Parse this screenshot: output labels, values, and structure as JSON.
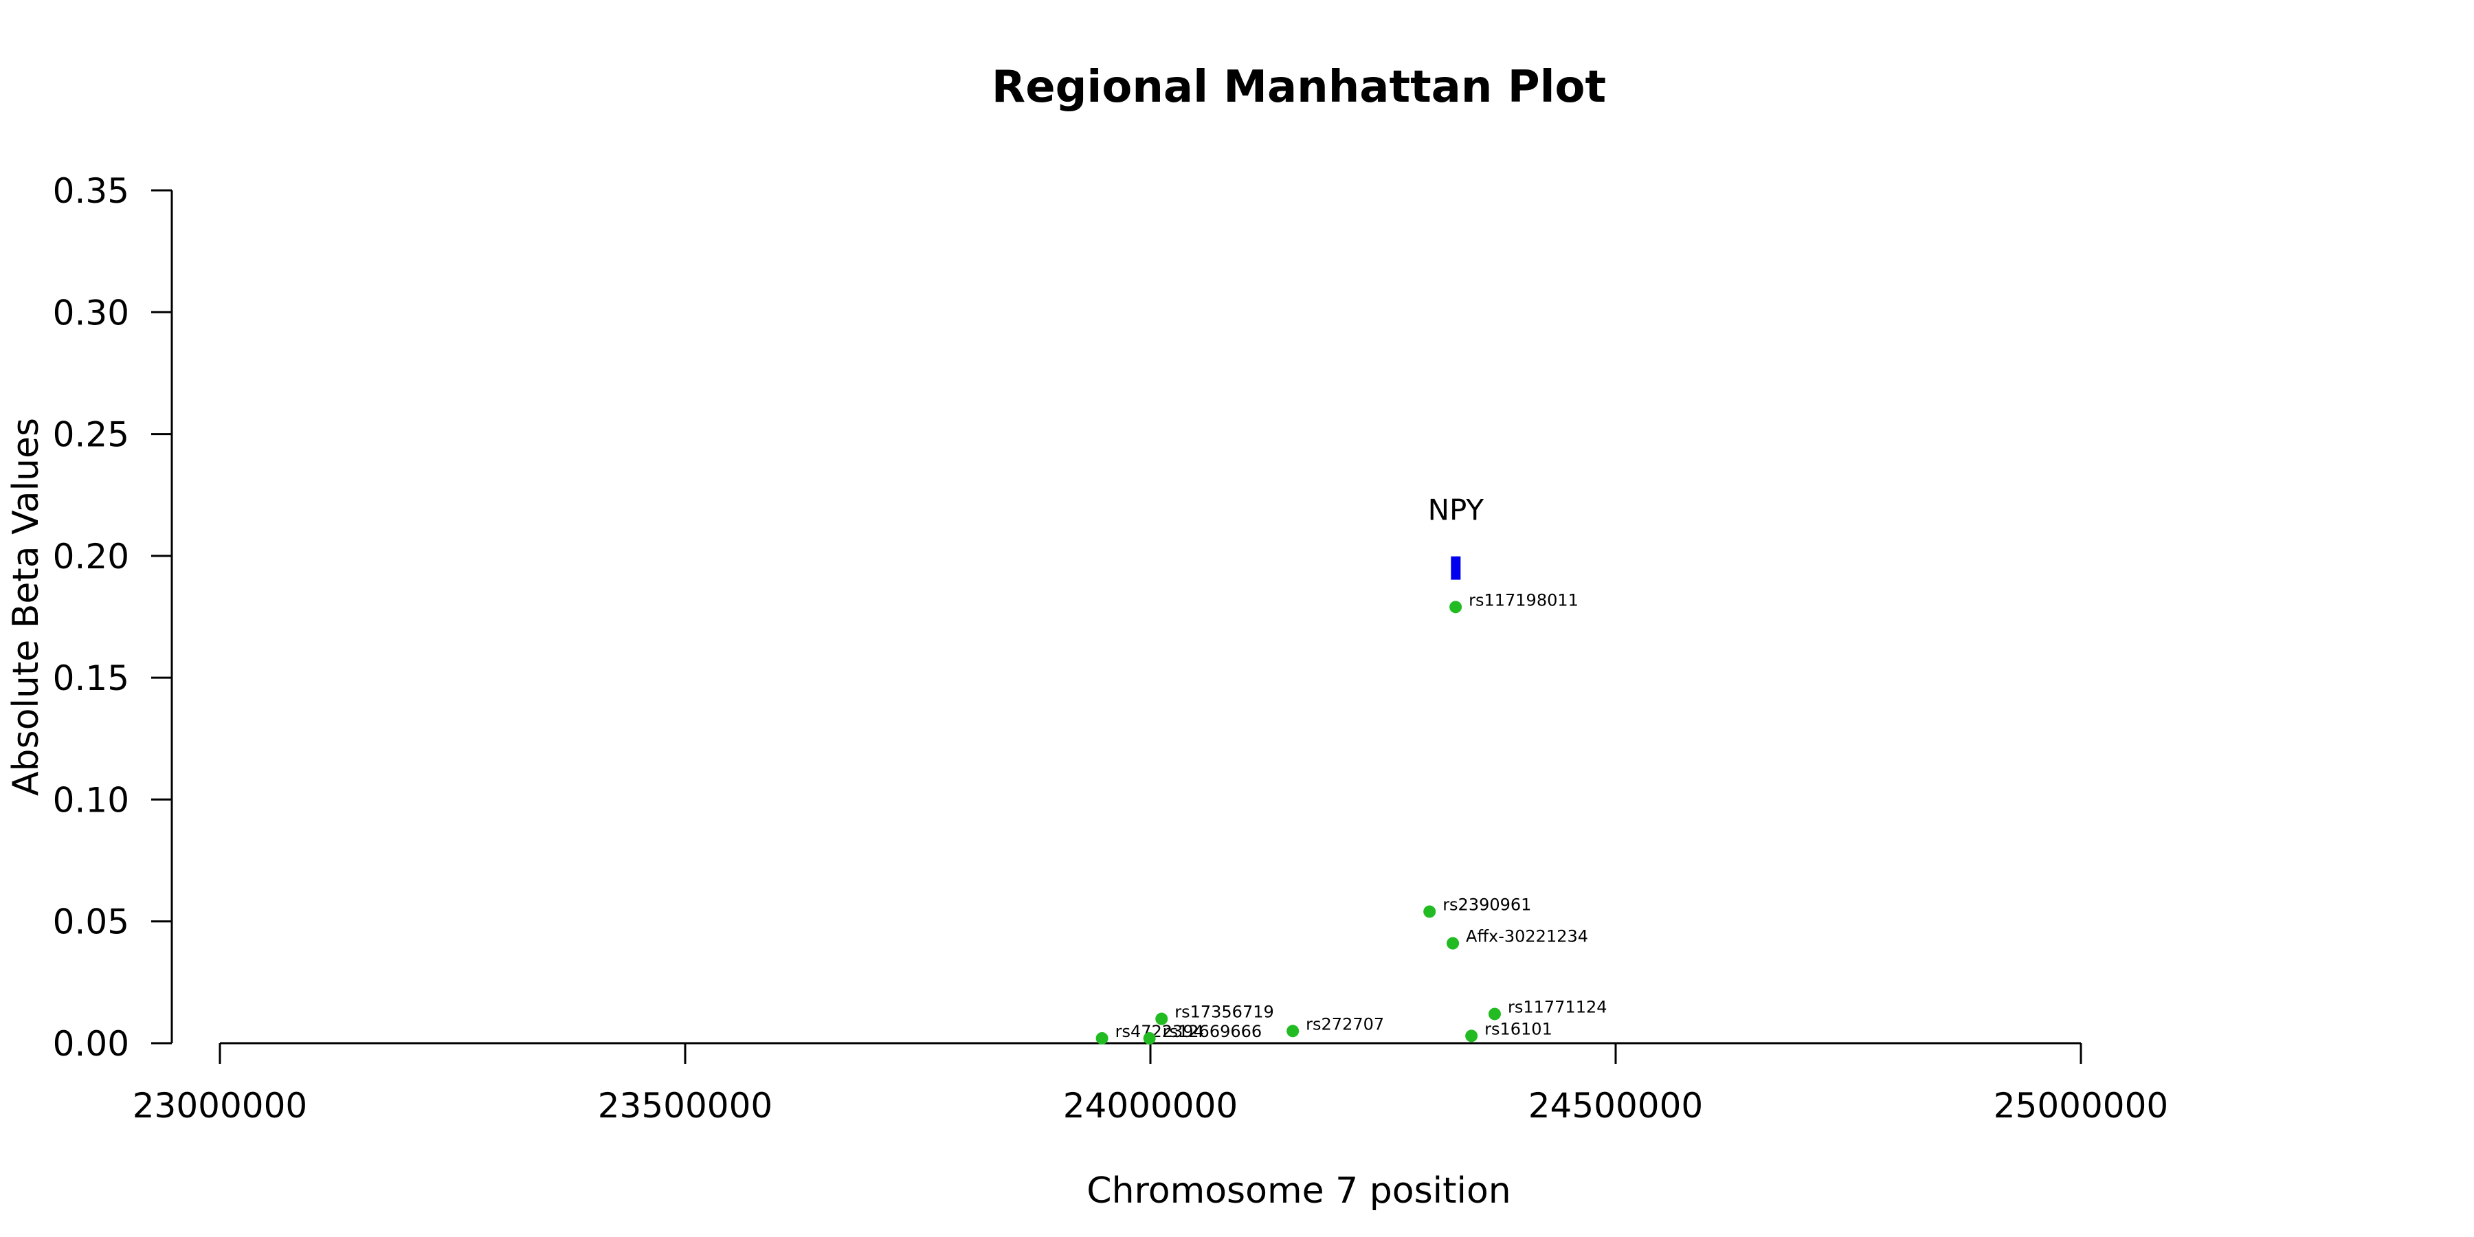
{
  "chart_data": {
    "type": "scatter",
    "title": "Regional Manhattan Plot",
    "xlabel": "Chromosome 7 position",
    "ylabel": "Absolute Beta Values",
    "xlim": [
      23000000,
      25000000
    ],
    "ylim": [
      0,
      0.35
    ],
    "x_ticks": [
      "23000000",
      "23500000",
      "24000000",
      "24500000",
      "25000000"
    ],
    "y_ticks": [
      "0.00",
      "0.05",
      "0.10",
      "0.15",
      "0.20",
      "0.25",
      "0.30",
      "0.35"
    ],
    "grid": false,
    "colors": {
      "snp": "#22bb22",
      "gene": "#0000ee"
    },
    "gene": {
      "label": "NPY",
      "start": 24323000,
      "end": 24333000,
      "y": 0.195
    },
    "points": [
      {
        "label": "rs117198011",
        "x": 24328000,
        "y": 0.179
      },
      {
        "label": "rs2390961",
        "x": 24300000,
        "y": 0.054
      },
      {
        "label": "Affx-30221234",
        "x": 24325000,
        "y": 0.041
      },
      {
        "label": "rs11771124",
        "x": 24370000,
        "y": 0.012
      },
      {
        "label": "rs17356719",
        "x": 24012000,
        "y": 0.01
      },
      {
        "label": "rs272707",
        "x": 24153000,
        "y": 0.005
      },
      {
        "label": "rs16101",
        "x": 24345000,
        "y": 0.003
      },
      {
        "label": "rs4722394",
        "x": 23948000,
        "y": 0.002
      },
      {
        "label": "rs12669666",
        "x": 23999000,
        "y": 0.002
      }
    ]
  }
}
